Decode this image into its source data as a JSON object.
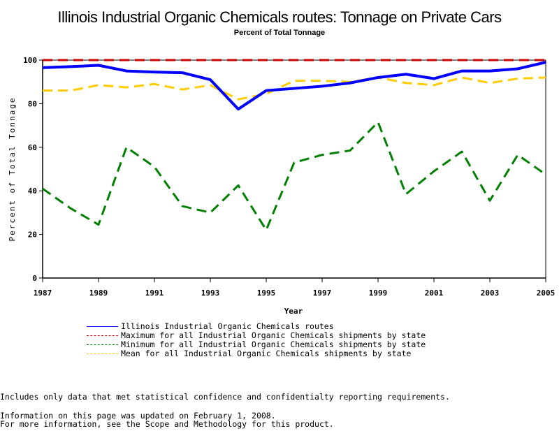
{
  "chart_data": {
    "type": "line",
    "title": "Illinois Industrial Organic Chemicals routes: Tonnage on Private Cars",
    "subtitle": "Percent of Total Tonnage",
    "xlabel": "Year",
    "ylabel": "Percent of Total Tonnage",
    "xlim": [
      1987,
      2005
    ],
    "ylim": [
      0,
      100
    ],
    "x_ticks": [
      1987,
      1989,
      1991,
      1993,
      1995,
      1997,
      1999,
      2001,
      2003,
      2005
    ],
    "y_ticks": [
      0,
      20,
      40,
      60,
      80,
      100
    ],
    "x": [
      1987,
      1988,
      1989,
      1990,
      1991,
      1992,
      1993,
      1994,
      1995,
      1996,
      1997,
      1998,
      1999,
      2000,
      2001,
      2002,
      2003,
      2004,
      2005
    ],
    "series": [
      {
        "name": "Illinois Industrial Organic Chemicals routes",
        "color": "#0000ff",
        "style": "solid",
        "values": [
          96.5,
          97,
          97.6,
          95,
          94.5,
          94.2,
          91,
          77.5,
          86,
          87,
          88,
          89.5,
          92,
          93.5,
          91.5,
          95,
          95,
          96,
          99
        ]
      },
      {
        "name": "Maximum for all Industrial Organic Chemicals shipments by state",
        "color": "#cc0000",
        "style": "dashed",
        "values": [
          100,
          100,
          100,
          100,
          100,
          100,
          100,
          100,
          100,
          100,
          100,
          100,
          100,
          100,
          100,
          100,
          100,
          100,
          100
        ]
      },
      {
        "name": "Minimum for all Industrial Organic Chemicals shipments by state",
        "color": "#008000",
        "style": "dashed",
        "values": [
          41,
          32,
          24.5,
          60,
          51,
          33,
          30,
          42.5,
          22,
          53,
          56.5,
          58.5,
          71.5,
          38.5,
          49,
          58,
          35.5,
          56.5,
          47.5
        ]
      },
      {
        "name": "Mean for all Industrial Organic Chemicals shipments by state",
        "color": "#ffcc00",
        "style": "dashed",
        "values": [
          86,
          86,
          88.5,
          87.5,
          89,
          86.5,
          88.5,
          82,
          84.5,
          90.5,
          90.5,
          90,
          92,
          89.5,
          88.5,
          92,
          89.5,
          91.5,
          92
        ]
      }
    ],
    "legend_position": "bottom",
    "grid": false
  },
  "notes": [
    "Includes only data that met statistical confidence and confidentialty reporting requirements.",
    "For more information, see the Scope and Methodology for this product."
  ],
  "updated": "Information on this page was updated on February 1, 2008."
}
